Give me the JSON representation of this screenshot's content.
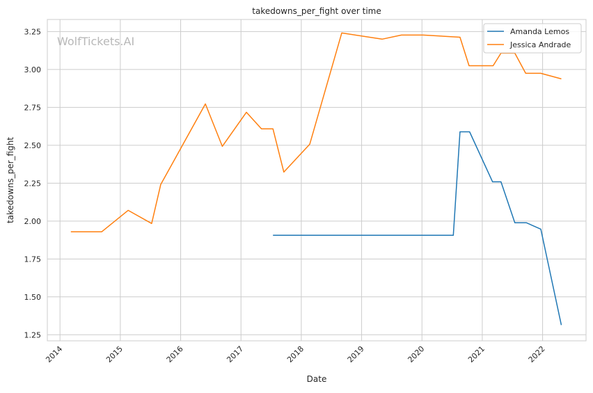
{
  "chart_data": {
    "type": "line",
    "title": "takedowns_per_fight over time",
    "xlabel": "Date",
    "ylabel": "takedowns_per_fight",
    "xlim": [
      2013.79,
      2022.72
    ],
    "ylim": [
      1.21,
      3.33
    ],
    "x_ticks": [
      2014,
      2015,
      2016,
      2017,
      2018,
      2019,
      2020,
      2021,
      2022
    ],
    "x_tick_labels": [
      "2014",
      "2015",
      "2016",
      "2017",
      "2018",
      "2019",
      "2020",
      "2021",
      "2022"
    ],
    "y_ticks": [
      1.25,
      1.5,
      1.75,
      2.0,
      2.25,
      2.5,
      2.75,
      3.0,
      3.25
    ],
    "y_tick_labels": [
      "1.25",
      "1.50",
      "1.75",
      "2.00",
      "2.25",
      "2.50",
      "2.75",
      "3.00",
      "3.25"
    ],
    "grid": true,
    "legend_position": "top-right",
    "watermark": "WolfTickets.AI",
    "series": [
      {
        "name": "Amanda Lemos",
        "color": "#1f77b4",
        "x": [
          2017.53,
          2020.52,
          2020.63,
          2020.79,
          2021.17,
          2021.31,
          2021.54,
          2021.73,
          2021.97,
          2022.31
        ],
        "y": [
          1.906,
          1.906,
          2.589,
          2.589,
          2.259,
          2.259,
          1.989,
          1.989,
          1.947,
          1.314
        ]
      },
      {
        "name": "Jessica Andrade",
        "color": "#ff7f0e",
        "x": [
          2014.18,
          2014.69,
          2015.13,
          2015.52,
          2015.67,
          2016.41,
          2016.69,
          2017.09,
          2017.34,
          2017.53,
          2017.71,
          2018.14,
          2018.67,
          2019.34,
          2019.66,
          2020.02,
          2020.63,
          2020.78,
          2021.18,
          2021.31,
          2021.54,
          2021.72,
          2021.97,
          2022.31
        ],
        "y": [
          1.929,
          1.929,
          2.071,
          1.984,
          2.241,
          2.773,
          2.493,
          2.718,
          2.608,
          2.608,
          2.323,
          2.507,
          3.241,
          3.2,
          3.227,
          3.227,
          3.213,
          3.025,
          3.025,
          3.108,
          3.108,
          2.975,
          2.975,
          2.938
        ]
      }
    ]
  }
}
